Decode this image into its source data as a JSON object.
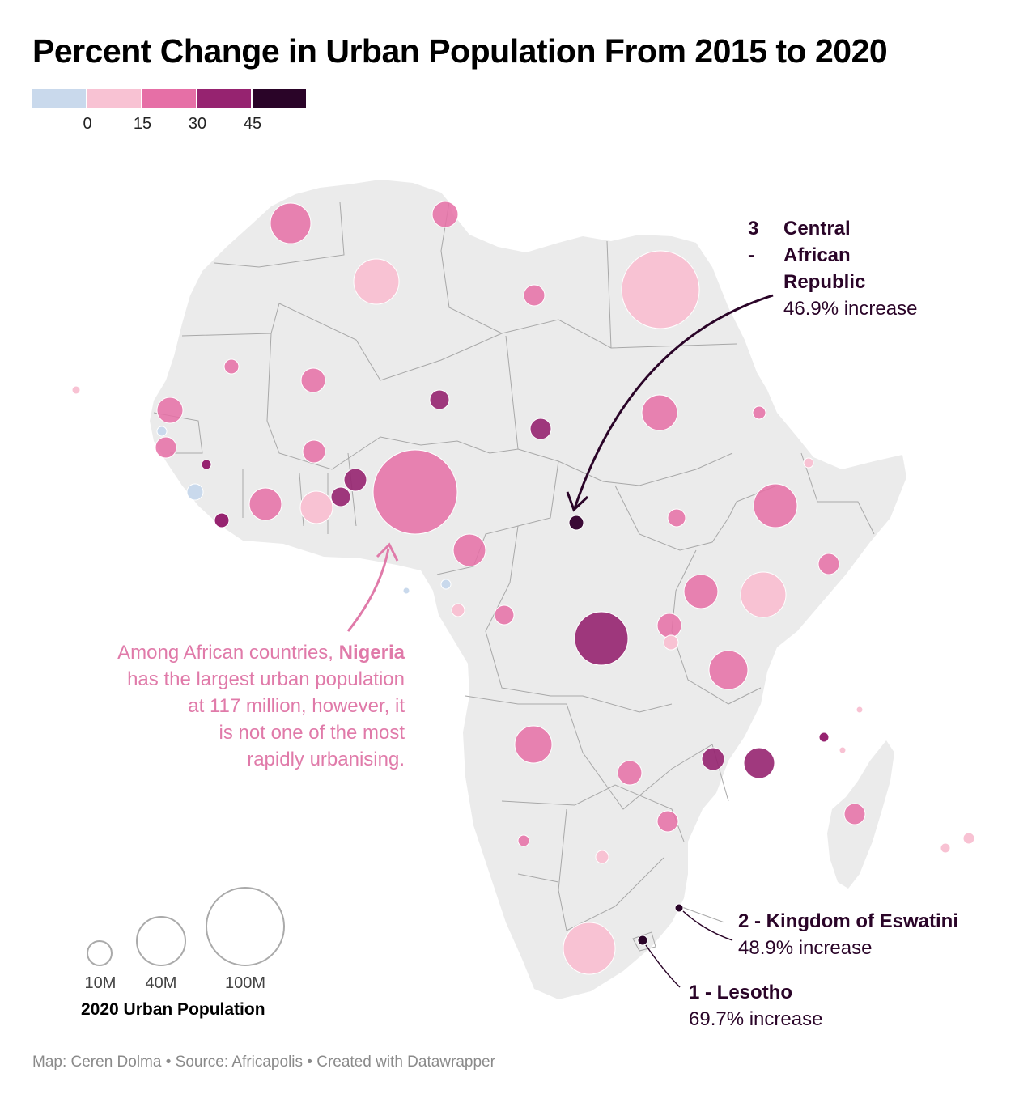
{
  "title": "Percent Change in Urban Population From 2015 to 2020",
  "color_legend": {
    "swatches": [
      "#c9d9ec",
      "#f8c2d3",
      "#e66fa6",
      "#962370",
      "#2a0428"
    ],
    "ticks": [
      "0",
      "15",
      "30",
      "45"
    ]
  },
  "size_legend": {
    "title": "2020 Urban Population",
    "labels": [
      "10M",
      "40M",
      "100M"
    ]
  },
  "annotations": {
    "nigeria": {
      "before": "Among African countries, ",
      "country": "Nigeria",
      "line1_end": "",
      "rest": [
        "has the largest urban population",
        "at 117 million, however, it",
        "is not one of the most",
        "rapidly urbanising."
      ]
    },
    "car": {
      "rank": "3 -",
      "name_lines": [
        "Central",
        "African",
        "Republic"
      ],
      "value": "46.9% increase"
    },
    "eswatini": {
      "name": "2 - Kingdom of Eswatini",
      "value": "48.9% increase"
    },
    "lesotho": {
      "name": "1 - Lesotho",
      "value": "69.7% increase"
    }
  },
  "footer": "Map: Ceren Dolma • Source: Africapolis • Created with Datawrapper",
  "map_colors": {
    "land": "#ebebeb",
    "border": "#a8a8a8",
    "nigeria_note": "#e07aa9",
    "callout": "#2a0428"
  }
}
